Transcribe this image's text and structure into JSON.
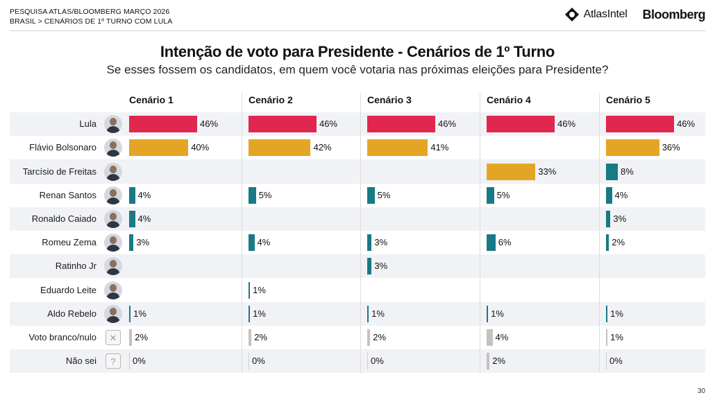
{
  "header": {
    "line1": "PESQUISA ATLAS/BLOOMBERG MARÇO 2026",
    "line2": "BRASIL > CENÁRIOS DE 1º TURNO COM LULA",
    "atlas_logo_text": "AtlasIntel",
    "bloomberg_logo_text": "Bloomberg"
  },
  "page_number": "30",
  "colors": {
    "lula": "#e0274f",
    "second": "#e3a624",
    "other": "#177a86",
    "blank": "#c2c2c2",
    "band": "#f1f2f5"
  },
  "chart_data": {
    "type": "bar",
    "title": "Intenção de voto para Presidente - Cenários de 1º Turno",
    "subtitle": "Se esses fossem os candidatos, em quem você votaria nas próximas eleições para Presidente?",
    "scenarios": [
      "Cenário 1",
      "Cenário 2",
      "Cenário 3",
      "Cenário 4",
      "Cenário 5"
    ],
    "rows": [
      {
        "name": "Lula",
        "icon": "lula-avatar-icon",
        "kind": "lula",
        "values": [
          46,
          46,
          46,
          46,
          46
        ]
      },
      {
        "name": "Flávio Bolsonaro",
        "icon": "flavio-bolsonaro-avatar-icon",
        "kind": "second",
        "values": [
          40,
          42,
          41,
          null,
          36
        ]
      },
      {
        "name": "Tarcísio de Freitas",
        "icon": "tarcisio-de-freitas-avatar-icon",
        "kind": "mixed",
        "values": [
          null,
          null,
          null,
          33,
          8
        ]
      },
      {
        "name": "Renan Santos",
        "icon": "renan-santos-avatar-icon",
        "kind": "other",
        "values": [
          4,
          5,
          5,
          5,
          4
        ]
      },
      {
        "name": "Ronaldo Caiado",
        "icon": "ronaldo-caiado-avatar-icon",
        "kind": "other",
        "values": [
          4,
          null,
          null,
          null,
          3
        ]
      },
      {
        "name": "Romeu Zema",
        "icon": "romeu-zema-avatar-icon",
        "kind": "other",
        "values": [
          3,
          4,
          3,
          6,
          2
        ]
      },
      {
        "name": "Ratinho Jr",
        "icon": "ratinho-jr-avatar-icon",
        "kind": "other",
        "values": [
          null,
          null,
          3,
          null,
          null
        ]
      },
      {
        "name": "Eduardo Leite",
        "icon": "eduardo-leite-avatar-icon",
        "kind": "other",
        "values": [
          null,
          1,
          null,
          null,
          null
        ]
      },
      {
        "name": "Aldo Rebelo",
        "icon": "aldo-rebelo-avatar-icon",
        "kind": "other",
        "values": [
          1,
          1,
          1,
          1,
          1
        ]
      },
      {
        "name": "Voto branco/nulo",
        "icon": "blank-vote-icon",
        "kind": "blank",
        "values": [
          2,
          2,
          2,
          4,
          1
        ]
      },
      {
        "name": "Não sei",
        "icon": "question-box-icon",
        "kind": "blank",
        "values": [
          0,
          0,
          0,
          2,
          0
        ]
      }
    ],
    "value_suffix": "%",
    "xlim": [
      0,
      46
    ]
  }
}
